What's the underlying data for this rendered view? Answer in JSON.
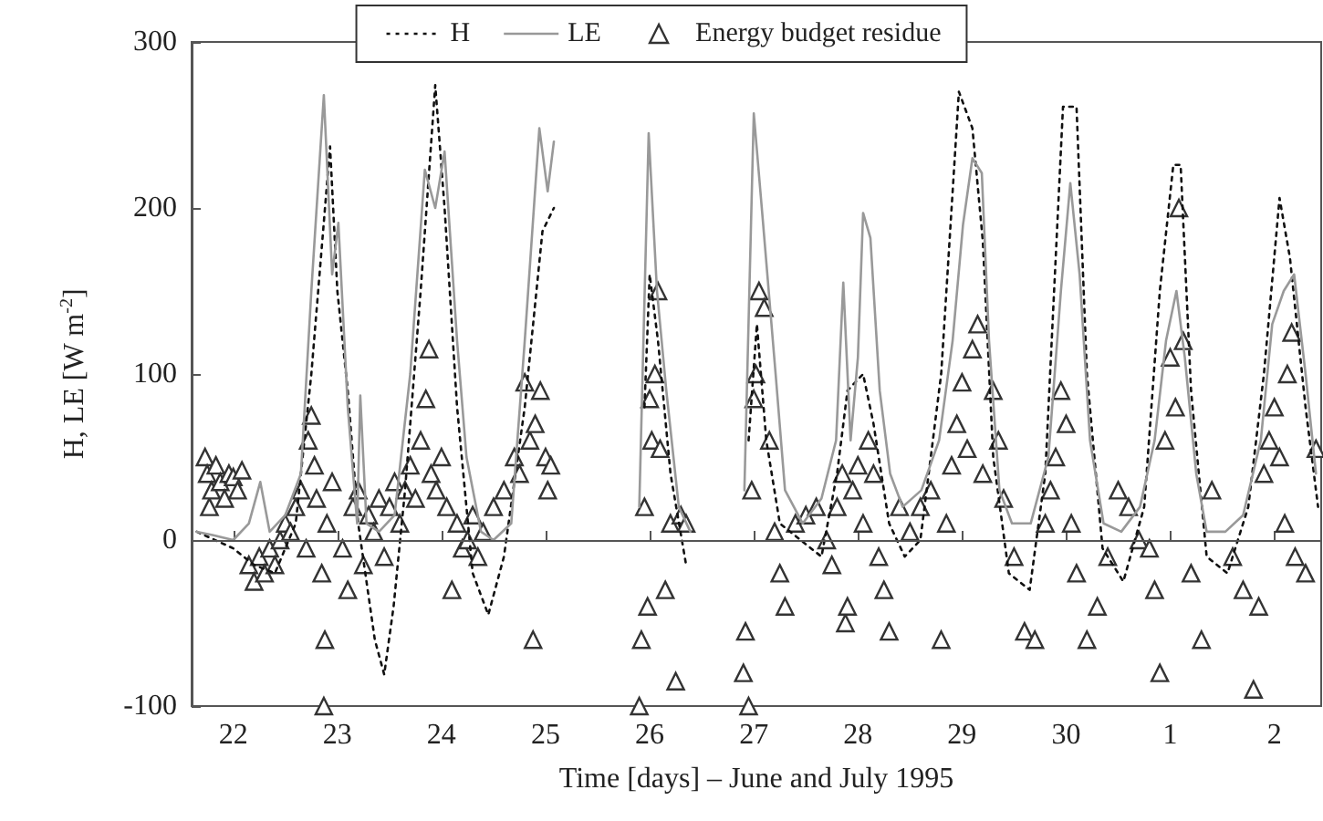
{
  "chart_data": {
    "type": "line",
    "xlabel": "Time [days] – June and July 1995",
    "ylabel": "H, LE [W m$^{-2}$]",
    "xlim": [
      "1995-06-21T14:24",
      "1995-07-02T10:48"
    ],
    "xticks": [
      {
        "value": "1995-06-22",
        "label": "22"
      },
      {
        "value": "1995-06-23",
        "label": "23"
      },
      {
        "value": "1995-06-24",
        "label": "24"
      },
      {
        "value": "1995-06-25",
        "label": "25"
      },
      {
        "value": "1995-06-26",
        "label": "26"
      },
      {
        "value": "1995-06-27",
        "label": "27"
      },
      {
        "value": "1995-06-28",
        "label": "28"
      },
      {
        "value": "1995-06-29",
        "label": "29"
      },
      {
        "value": "1995-06-30",
        "label": "30"
      },
      {
        "value": "1995-07-01",
        "label": "1"
      },
      {
        "value": "1995-07-02",
        "label": "2"
      }
    ],
    "ylim": [
      -100,
      300
    ],
    "yticks": [
      -100,
      0,
      100,
      200,
      300
    ],
    "legend": "top",
    "ref_lines": [
      {
        "axis": "y",
        "value": 0,
        "label": null,
        "color": "#555555"
      }
    ],
    "series": [
      {
        "name": "H",
        "color": "#111111",
        "line_style": "dotted",
        "marker": "none",
        "x": [
          "1995-06-21T15:36",
          "1995-06-22T00:00",
          "1995-06-22T04:48",
          "1995-06-22T09:36",
          "1995-06-22T14:24",
          "1995-06-22T18:00",
          "1995-06-22T22:19",
          "1995-06-23T00:00",
          "1995-06-23T02:24",
          "1995-06-23T04:48",
          "1995-06-23T08:38",
          "1995-06-23T10:48",
          "1995-06-23T12:58",
          "1995-06-23T15:36",
          "1995-06-23T19:12",
          "1995-06-23T22:34",
          "1995-06-24T00:43",
          "1995-06-24T03:36",
          "1995-06-24T07:12",
          "1995-06-24T10:48",
          "1995-06-24T14:24",
          "1995-06-24T19:12",
          "1995-06-24T23:17",
          "1995-06-25T01:55",
          "1995-06-25T12:00",
          "1995-06-25T22:48",
          "1995-06-26T00:00",
          "1995-06-26T01:55",
          "1995-06-26T04:48",
          "1995-06-26T08:24",
          "1995-06-26T14:24",
          "1995-06-26T22:48",
          "1995-06-27T00:43",
          "1995-06-27T02:53",
          "1995-06-27T06:00",
          "1995-06-27T10:48",
          "1995-06-27T15:36",
          "1995-06-27T19:12",
          "1995-06-27T21:36",
          "1995-06-28T01:12",
          "1995-06-28T03:36",
          "1995-06-28T07:12",
          "1995-06-28T10:48",
          "1995-06-28T14:24",
          "1995-06-28T19:12",
          "1995-06-28T23:17",
          "1995-06-29T02:24",
          "1995-06-29T04:48",
          "1995-06-29T07:12",
          "1995-06-29T10:48",
          "1995-06-29T15:36",
          "1995-06-29T19:12",
          "1995-06-29T23:17",
          "1995-06-30T02:24",
          "1995-06-30T04:48",
          "1995-06-30T08:24",
          "1995-06-30T13:12",
          "1995-06-30T18:00",
          "1995-06-30T21:36",
          "1995-07-01T00:43",
          "1995-07-01T02:24",
          "1995-07-01T04:48",
          "1995-07-01T08:24",
          "1995-07-01T13:12",
          "1995-07-01T18:00",
          "1995-07-01T21:36",
          "1995-07-02T01:12",
          "1995-07-02T03:36",
          "1995-07-02T07:12",
          "1995-07-02T10:05"
        ],
        "values": [
          5,
          -5,
          -15,
          -20,
          10,
          100,
          237,
          150,
          90,
          10,
          -60,
          -81,
          -40,
          30,
          150,
          274,
          200,
          80,
          -20,
          -45,
          -10,
          80,
          186,
          200,
          null,
          80,
          160,
          120,
          40,
          -15,
          null,
          60,
          130,
          60,
          10,
          0,
          -10,
          40,
          90,
          100,
          70,
          10,
          -10,
          0,
          100,
          270,
          248,
          180,
          50,
          -20,
          -30,
          40,
          261,
          261,
          100,
          -5,
          -25,
          20,
          150,
          226,
          226,
          90,
          -10,
          -20,
          20,
          100,
          206,
          170,
          80,
          20
        ]
      },
      {
        "name": "LE",
        "color": "#999999",
        "line_style": "solid",
        "marker": "none",
        "x": [
          "1995-06-21T15:36",
          "1995-06-21T19:12",
          "1995-06-22T00:00",
          "1995-06-22T03:36",
          "1995-06-22T06:14",
          "1995-06-22T08:24",
          "1995-06-22T12:00",
          "1995-06-22T15:36",
          "1995-06-22T18:00",
          "1995-06-22T20:53",
          "1995-06-22T22:48",
          "1995-06-23T00:14",
          "1995-06-23T02:24",
          "1995-06-23T04:34",
          "1995-06-23T05:17",
          "1995-06-23T06:43",
          "1995-06-23T09:36",
          "1995-06-23T13:12",
          "1995-06-23T16:48",
          "1995-06-23T20:10",
          "1995-06-23T22:34",
          "1995-06-24T00:43",
          "1995-06-24T03:36",
          "1995-06-24T05:46",
          "1995-06-24T09:07",
          "1995-06-24T12:00",
          "1995-06-24T16:05",
          "1995-06-24T19:12",
          "1995-06-24T22:34",
          "1995-06-25T00:29",
          "1995-06-25T01:55",
          "1995-06-25T12:00",
          "1995-06-25T21:36",
          "1995-06-25T23:46",
          "1995-06-26T01:41",
          "1995-06-26T03:50",
          "1995-06-26T06:43",
          "1995-06-26T09:22",
          "1995-06-26T14:24",
          "1995-06-26T21:50",
          "1995-06-27T00:00",
          "1995-06-27T02:10",
          "1995-06-27T05:02",
          "1995-06-27T07:12",
          "1995-06-27T11:17",
          "1995-06-27T15:36",
          "1995-06-27T18:58",
          "1995-06-27T20:38",
          "1995-06-27T22:19",
          "1995-06-28T00:00",
          "1995-06-28T01:12",
          "1995-06-28T02:53",
          "1995-06-28T05:02",
          "1995-06-28T07:26",
          "1995-06-28T10:19",
          "1995-06-28T14:38",
          "1995-06-28T18:43",
          "1995-06-28T21:50",
          "1995-06-29T00:14",
          "1995-06-29T02:24",
          "1995-06-29T04:34",
          "1995-06-29T06:14",
          "1995-06-29T08:38",
          "1995-06-29T11:31",
          "1995-06-29T15:50",
          "1995-06-29T19:55",
          "1995-06-29T22:48",
          "1995-06-30T00:58",
          "1995-06-30T03:07",
          "1995-06-30T05:31",
          "1995-06-30T08:38",
          "1995-06-30T12:43",
          "1995-06-30T17:02",
          "1995-06-30T20:24",
          "1995-06-30T23:02",
          "1995-07-01T01:26",
          "1995-07-01T03:22",
          "1995-07-01T06:00",
          "1995-07-01T08:24",
          "1995-07-01T12:43",
          "1995-07-01T16:48",
          "1995-07-01T20:53",
          "1995-07-01T23:31",
          "1995-07-02T02:10",
          "1995-07-02T04:34",
          "1995-07-02T07:12",
          "1995-07-02T09:36"
        ],
        "values": [
          5,
          3,
          0,
          10,
          35,
          5,
          15,
          40,
          150,
          268,
          160,
          191,
          80,
          10,
          87,
          10,
          5,
          15,
          100,
          223,
          200,
          234,
          120,
          50,
          5,
          0,
          10,
          120,
          248,
          210,
          240,
          null,
          20,
          245,
          150,
          90,
          20,
          5,
          null,
          30,
          257,
          190,
          100,
          30,
          10,
          25,
          60,
          155,
          60,
          110,
          197,
          182,
          90,
          40,
          20,
          30,
          60,
          120,
          190,
          230,
          221,
          120,
          30,
          10,
          10,
          50,
          150,
          215,
          160,
          60,
          10,
          5,
          20,
          60,
          120,
          150,
          110,
          40,
          5,
          5,
          15,
          60,
          130,
          150,
          160,
          100,
          40
        ]
      },
      {
        "name": "Energy budget residue",
        "type": "scatter",
        "color": "#333333",
        "marker": "triangle",
        "x": [
          "1995-06-21T17:30",
          "1995-06-21T18:30",
          "1995-06-21T18:00",
          "1995-06-21T19:00",
          "1995-06-21T20:00",
          "1995-06-21T21:00",
          "1995-06-21T22:00",
          "1995-06-21T23:00",
          "1995-06-22T00:00",
          "1995-06-22T01:00",
          "1995-06-22T02:00",
          "1995-06-22T03:36",
          "1995-06-22T04:48",
          "1995-06-22T06:00",
          "1995-06-22T07:12",
          "1995-06-22T08:24",
          "1995-06-22T09:36",
          "1995-06-22T10:48",
          "1995-06-22T12:00",
          "1995-06-22T13:12",
          "1995-06-22T14:24",
          "1995-06-22T15:36",
          "1995-06-22T16:48",
          "1995-06-22T17:17",
          "1995-06-22T18:00",
          "1995-06-22T18:43",
          "1995-06-22T19:12",
          "1995-06-22T20:24",
          "1995-06-22T21:07",
          "1995-06-22T20:53",
          "1995-06-22T21:36",
          "1995-06-22T22:48",
          "1995-06-23T01:12",
          "1995-06-23T02:24",
          "1995-06-23T03:36",
          "1995-06-23T04:48",
          "1995-06-23T06:00",
          "1995-06-23T07:12",
          "1995-06-23T08:24",
          "1995-06-23T09:36",
          "1995-06-23T10:48",
          "1995-06-23T12:00",
          "1995-06-23T13:12",
          "1995-06-23T14:24",
          "1995-06-23T15:36",
          "1995-06-23T16:48",
          "1995-06-23T18:00",
          "1995-06-23T19:12",
          "1995-06-23T20:24",
          "1995-06-23T21:07",
          "1995-06-23T21:36",
          "1995-06-23T22:48",
          "1995-06-24T00:00",
          "1995-06-24T01:12",
          "1995-06-24T02:24",
          "1995-06-24T03:36",
          "1995-06-24T04:48",
          "1995-06-24T06:00",
          "1995-06-24T07:12",
          "1995-06-24T08:24",
          "1995-06-24T09:36",
          "1995-06-24T12:00",
          "1995-06-24T14:24",
          "1995-06-24T16:48",
          "1995-06-24T18:00",
          "1995-06-24T19:12",
          "1995-06-24T20:24",
          "1995-06-24T21:07",
          "1995-06-24T21:36",
          "1995-06-24T22:48",
          "1995-06-25T00:00",
          "1995-06-25T00:29",
          "1995-06-25T01:12",
          "1995-06-25T21:36",
          "1995-06-25T22:05",
          "1995-06-25T22:48",
          "1995-06-25T23:31",
          "1995-06-26T00:00",
          "1995-06-26T00:29",
          "1995-06-26T01:12",
          "1995-06-26T01:55",
          "1995-06-26T02:24",
          "1995-06-26T03:36",
          "1995-06-26T04:48",
          "1995-06-26T06:00",
          "1995-06-26T07:12",
          "1995-06-26T08:24",
          "1995-06-26T21:36",
          "1995-06-26T22:05",
          "1995-06-26T22:48",
          "1995-06-26T23:31",
          "1995-06-27T00:00",
          "1995-06-27T00:29",
          "1995-06-27T01:12",
          "1995-06-27T02:24",
          "1995-06-27T03:36",
          "1995-06-27T04:48",
          "1995-06-27T06:00",
          "1995-06-27T07:12",
          "1995-06-27T09:36",
          "1995-06-27T12:00",
          "1995-06-27T14:24",
          "1995-06-27T16:48",
          "1995-06-27T18:00",
          "1995-06-27T19:12",
          "1995-06-27T20:24",
          "1995-06-27T21:07",
          "1995-06-27T21:36",
          "1995-06-27T22:48",
          "1995-06-28T00:00",
          "1995-06-28T01:12",
          "1995-06-28T02:24",
          "1995-06-28T03:36",
          "1995-06-28T04:48",
          "1995-06-28T06:00",
          "1995-06-28T07:12",
          "1995-06-28T09:36",
          "1995-06-28T12:00",
          "1995-06-28T14:24",
          "1995-06-28T16:48",
          "1995-06-28T19:12",
          "1995-06-28T20:24",
          "1995-06-28T21:36",
          "1995-06-28T22:48",
          "1995-06-29T00:00",
          "1995-06-29T01:12",
          "1995-06-29T02:24",
          "1995-06-29T03:36",
          "1995-06-29T04:48",
          "1995-06-29T07:12",
          "1995-06-29T08:24",
          "1995-06-29T09:36",
          "1995-06-29T12:00",
          "1995-06-29T14:24",
          "1995-06-29T16:48",
          "1995-06-29T19:12",
          "1995-06-29T20:24",
          "1995-06-29T21:36",
          "1995-06-29T22:48",
          "1995-06-30T00:00",
          "1995-06-30T01:12",
          "1995-06-30T02:24",
          "1995-06-30T04:48",
          "1995-06-30T07:12",
          "1995-06-30T09:36",
          "1995-06-30T12:00",
          "1995-06-30T14:24",
          "1995-06-30T16:48",
          "1995-06-30T19:12",
          "1995-06-30T20:24",
          "1995-06-30T21:36",
          "1995-06-30T22:48",
          "1995-07-01T00:00",
          "1995-07-01T01:12",
          "1995-07-01T02:00",
          "1995-07-01T03:00",
          "1995-07-01T04:48",
          "1995-07-01T07:12",
          "1995-07-01T09:36",
          "1995-07-01T14:24",
          "1995-07-01T16:48",
          "1995-07-01T19:12",
          "1995-07-01T20:24",
          "1995-07-01T21:36",
          "1995-07-01T22:48",
          "1995-07-02T00:00",
          "1995-07-02T01:12",
          "1995-07-02T02:24",
          "1995-07-02T03:00",
          "1995-07-02T04:00",
          "1995-07-02T04:48",
          "1995-07-02T07:12",
          "1995-07-02T09:36"
        ],
        "values": [
          50,
          20,
          40,
          30,
          45,
          35,
          25,
          40,
          38,
          30,
          42,
          -15,
          -25,
          -10,
          -20,
          -5,
          -15,
          0,
          10,
          5,
          20,
          30,
          -5,
          60,
          75,
          45,
          25,
          -20,
          -60,
          -100,
          10,
          35,
          -5,
          -30,
          20,
          30,
          -15,
          15,
          5,
          25,
          -10,
          20,
          35,
          10,
          30,
          45,
          25,
          60,
          85,
          115,
          40,
          30,
          50,
          20,
          -30,
          10,
          -5,
          0,
          15,
          -10,
          5,
          20,
          30,
          50,
          40,
          95,
          60,
          -60,
          70,
          90,
          50,
          30,
          45,
          -100,
          -60,
          20,
          -40,
          85,
          60,
          100,
          150,
          55,
          -30,
          10,
          -85,
          15,
          10,
          -80,
          -55,
          -100,
          30,
          85,
          100,
          150,
          140,
          60,
          5,
          -20,
          -40,
          10,
          15,
          20,
          0,
          -15,
          20,
          40,
          -50,
          -40,
          30,
          45,
          10,
          60,
          40,
          -10,
          -30,
          -55,
          20,
          5,
          20,
          30,
          -60,
          10,
          45,
          70,
          95,
          55,
          115,
          130,
          40,
          90,
          60,
          25,
          -10,
          -55,
          -60,
          10,
          30,
          50,
          90,
          70,
          10,
          -20,
          -60,
          -40,
          -10,
          30,
          20,
          0,
          -5,
          -30,
          -80,
          60,
          110,
          80,
          200,
          120,
          -20,
          -60,
          30,
          -10,
          -30,
          -90,
          -40,
          40,
          60,
          80,
          50,
          10,
          100,
          125,
          -10,
          -20,
          55
        ]
      }
    ]
  }
}
